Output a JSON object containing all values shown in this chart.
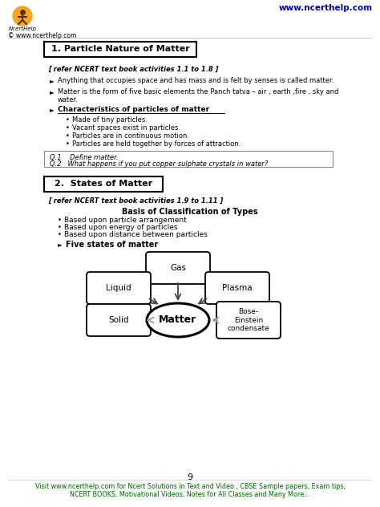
{
  "bg_color": "#ffffff",
  "header_url_right": "www.ncerthelp.com",
  "header_url_left": "© www.ncerthelp.com",
  "section1_title": "1. Particle Nature of Matter",
  "section1_ref": "[ refer NCERT text book activities 1.1 to 1.8 ]",
  "bullet1": "Anything that occupies space and has mass and is felt by senses is called matter.",
  "bullet2a": "Matter is the form of five basic elements the Panch tatva – air , earth ,fire , sky and",
  "bullet2b": "water.",
  "char_heading": "Characteristics of particles of matter",
  "char_bullets": [
    "Made of tiny particles.",
    "Vacant spaces exist in particles.",
    "Particles are in continuous motion.",
    "Particles are held together by forces of attraction."
  ],
  "q1": "Q.1    Define matter.",
  "q2": "Q.2   What happens if you put copper sulphate crystals in water?",
  "section2_title": "2.  States of Matter",
  "section2_ref": "[ refer NCERT text book activities 1.9 to 1.11 ]",
  "basis_title": "Basis of Classification of Types",
  "basis_bullets": [
    "Based upon particle arrangement",
    "Based upon energy of particles",
    "Based upon distance between particles"
  ],
  "five_states": "Five states of matter",
  "page_number": "9",
  "footer_line1": "Visit www.ncerthelp.com for Ncert Solutions in Text and Video , CBSE Sample papers, Exam tips,",
  "footer_line2": "NCERT BOOKS, Motivational Videos, Notes for All Classes and Many More...",
  "footer_color": "#006400",
  "header_color": "#0000cd",
  "text_color": "#000000",
  "logo_color": "#f5a623",
  "arrow_dark": "#444444",
  "arrow_gray": "#999999"
}
